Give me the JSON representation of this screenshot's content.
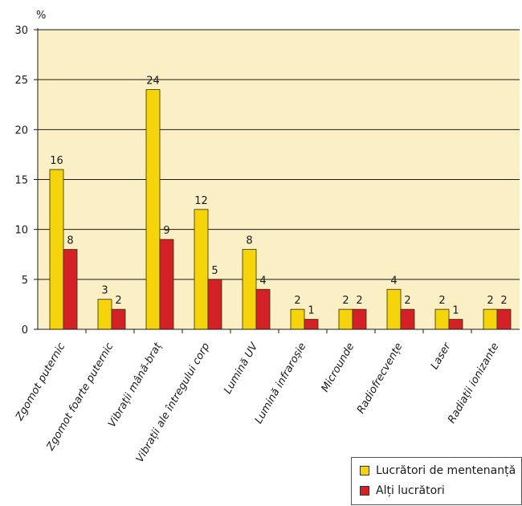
{
  "chart_data": {
    "type": "bar",
    "title": "",
    "ylabel": "%",
    "xlabel": "",
    "ylim": [
      0,
      30
    ],
    "yticks": [
      0,
      5,
      10,
      15,
      20,
      25,
      30
    ],
    "grid": true,
    "legend_position": "bottom-right",
    "categories": [
      "Zgomot puternic",
      "Zgomot foarte puternic",
      "Vibrații mână-braț",
      "Vibrații ale întregului corp",
      "Lumină UV",
      "Lumină infraroșie",
      "Microunde",
      "Radiofrecvențe",
      "Laser",
      "Radiații ionizante"
    ],
    "series": [
      {
        "name": "Lucrători de mentenanță",
        "color": "#f5d40b",
        "values": [
          16,
          3,
          24,
          12,
          8,
          2,
          2,
          4,
          2,
          2
        ]
      },
      {
        "name": "Alți lucrători",
        "color": "#d42027",
        "values": [
          8,
          2,
          9,
          5,
          4,
          1,
          2,
          2,
          1,
          2
        ]
      }
    ],
    "colors": {
      "plot_background": "#fbf0c5",
      "gridline": "#1a1a1a",
      "bar_outline": "#3a2a00"
    }
  }
}
